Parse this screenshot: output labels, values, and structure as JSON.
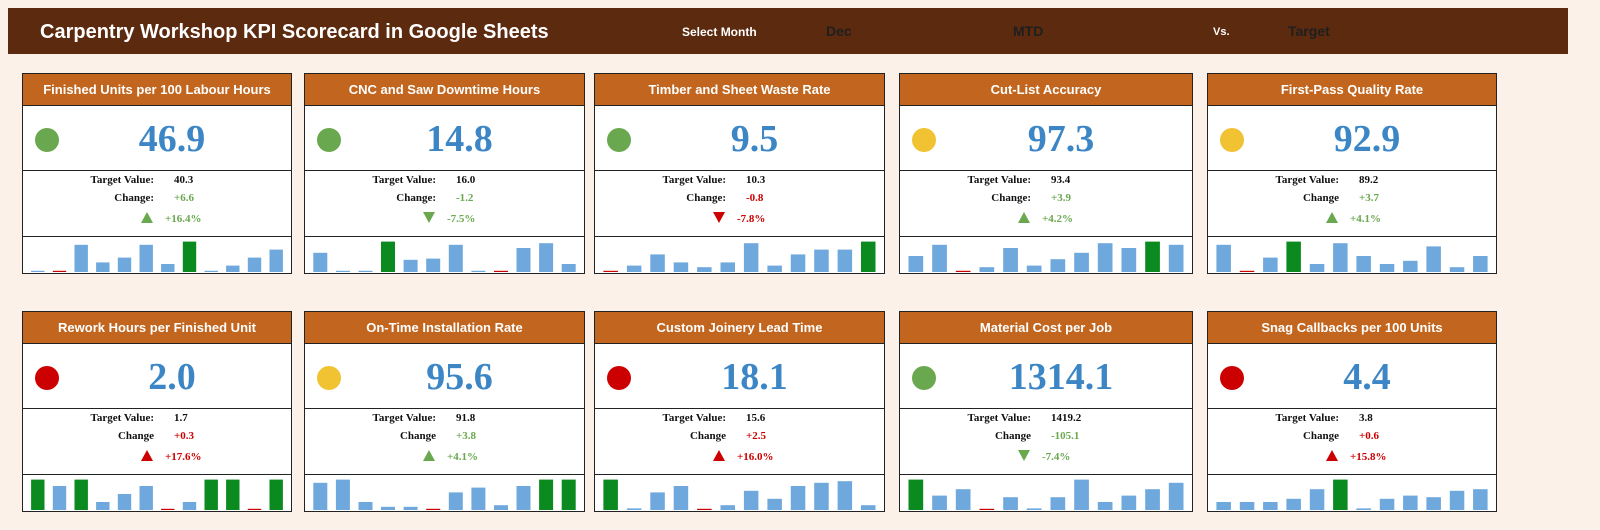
{
  "header": {
    "title": "Carpentry Workshop KPI Scorecard in Google Sheets",
    "select_month_label": "Select Month",
    "month": "Dec",
    "period": "MTD",
    "vs_label": "Vs.",
    "comparison": "Target"
  },
  "labels": {
    "target": "Target Value:"
  },
  "colors": {
    "header_bg": "#5c2a0e",
    "card_title_bg": "#c2661f",
    "value": "#3d86c6",
    "green": "#6aa84f",
    "amber": "#f1c232",
    "red": "#cc0000",
    "bar": "#6fa8dc",
    "bar_highlight": "#0b8a1f"
  },
  "cards": [
    {
      "title": "Finished Units per 100 Labour Hours",
      "value": "46.9",
      "status": "green",
      "target_value": "40.3",
      "change_label": "Change:",
      "change": "+6.6",
      "change_class": "pos",
      "direction": "up",
      "arrow_color": "green",
      "pct": "+16.4%",
      "bars": [
        0,
        0,
        0.85,
        0.3,
        0.45,
        0.85,
        0.25,
        0.95,
        0,
        0.2,
        0.45,
        0.7
      ],
      "bar_types": [
        "z",
        "r",
        "b",
        "b",
        "b",
        "b",
        "b",
        "g",
        "z",
        "b",
        "b",
        "b"
      ]
    },
    {
      "title": "CNC and Saw Downtime Hours",
      "value": "14.8",
      "status": "green",
      "target_value": "16.0",
      "change_label": "Change:",
      "change": "-1.2",
      "change_class": "pos",
      "direction": "down",
      "arrow_color": "green",
      "pct": "-7.5%",
      "bars": [
        0.6,
        0,
        0,
        0.95,
        0.38,
        0.42,
        0.85,
        0,
        0,
        0.75,
        0.9,
        0.25
      ],
      "bar_types": [
        "b",
        "z",
        "z",
        "g",
        "b",
        "b",
        "b",
        "z",
        "r",
        "b",
        "b",
        "b"
      ]
    },
    {
      "title": "Timber and Sheet Waste Rate",
      "value": "9.5",
      "status": "green",
      "target_value": "10.3",
      "change_label": "Change:",
      "change": "-0.8",
      "change_class": "neg",
      "direction": "down",
      "arrow_color": "red",
      "pct": "-7.8%",
      "bars": [
        0,
        0.2,
        0.55,
        0.3,
        0.15,
        0.3,
        0.9,
        0.2,
        0.55,
        0.7,
        0.7,
        0.95
      ],
      "bar_types": [
        "r",
        "b",
        "b",
        "b",
        "b",
        "b",
        "b",
        "b",
        "b",
        "b",
        "b",
        "g"
      ]
    },
    {
      "title": "Cut-List Accuracy",
      "value": "97.3",
      "status": "amber",
      "target_value": "93.4",
      "change_label": "Change:",
      "change": "+3.9",
      "change_class": "pos",
      "direction": "up",
      "arrow_color": "green",
      "pct": "+4.2%",
      "bars": [
        0.5,
        0.85,
        0,
        0.15,
        0.75,
        0.2,
        0.4,
        0.6,
        0.9,
        0.75,
        0.95,
        0.85
      ],
      "bar_types": [
        "b",
        "b",
        "r",
        "b",
        "b",
        "b",
        "b",
        "b",
        "b",
        "b",
        "g",
        "b"
      ]
    },
    {
      "title": "First-Pass Quality Rate",
      "value": "92.9",
      "status": "amber",
      "target_value": "89.2",
      "change_label": "Change",
      "change": "+3.7",
      "change_class": "pos",
      "direction": "up",
      "arrow_color": "green",
      "pct": "+4.1%",
      "bars": [
        0.85,
        0,
        0.45,
        0.95,
        0.25,
        0.9,
        0.5,
        0.25,
        0.35,
        0.8,
        0.15,
        0.5
      ],
      "bar_types": [
        "b",
        "r",
        "b",
        "g",
        "b",
        "b",
        "b",
        "b",
        "b",
        "b",
        "b",
        "b"
      ]
    },
    {
      "title": "Rework Hours per Finished Unit",
      "value": "2.0",
      "status": "red",
      "target_value": "1.7",
      "change_label": "Change",
      "change": "+0.3",
      "change_class": "neg",
      "direction": "up",
      "arrow_color": "red",
      "pct": "+17.6%",
      "bars": [
        0.95,
        0.75,
        0.95,
        0.25,
        0.5,
        0.75,
        0,
        0.25,
        0.95,
        0.95,
        0,
        0.95
      ],
      "bar_types": [
        "g",
        "b",
        "g",
        "b",
        "b",
        "b",
        "r",
        "b",
        "g",
        "g",
        "r",
        "g"
      ]
    },
    {
      "title": "On-Time Installation Rate",
      "value": "95.6",
      "status": "amber",
      "target_value": "91.8",
      "change_label": "Change",
      "change": "+3.8",
      "change_class": "pos",
      "direction": "up",
      "arrow_color": "green",
      "pct": "+4.1%",
      "bars": [
        0.85,
        0.95,
        0.25,
        0.1,
        0.1,
        0,
        0.55,
        0.7,
        0.15,
        0.75,
        0.95,
        0.95
      ],
      "bar_types": [
        "b",
        "b",
        "b",
        "b",
        "b",
        "r",
        "b",
        "b",
        "b",
        "b",
        "g",
        "g"
      ]
    },
    {
      "title": "Custom Joinery Lead Time",
      "value": "18.1",
      "status": "red",
      "target_value": "15.6",
      "change_label": "Change",
      "change": "+2.5",
      "change_class": "neg",
      "direction": "up",
      "arrow_color": "red",
      "pct": "+16.0%",
      "bars": [
        0.95,
        0.05,
        0.55,
        0.75,
        0,
        0.15,
        0.6,
        0.35,
        0.75,
        0.85,
        0.9,
        0.15
      ],
      "bar_types": [
        "g",
        "b",
        "b",
        "b",
        "r",
        "b",
        "b",
        "b",
        "b",
        "b",
        "b",
        "b"
      ]
    },
    {
      "title": "Material Cost per Job",
      "value": "1314.1",
      "status": "green",
      "target_value": "1419.2",
      "change_label": "Change",
      "change": "-105.1",
      "change_class": "pos",
      "direction": "down",
      "arrow_color": "green",
      "pct": "-7.4%",
      "bars": [
        0.95,
        0.45,
        0.65,
        0,
        0.4,
        0.05,
        0.4,
        0.95,
        0.25,
        0.45,
        0.65,
        0.85
      ],
      "bar_types": [
        "g",
        "b",
        "b",
        "r",
        "b",
        "b",
        "b",
        "b",
        "b",
        "b",
        "b",
        "b"
      ]
    },
    {
      "title": "Snag Callbacks per 100 Units",
      "value": "4.4",
      "status": "red",
      "target_value": "3.8",
      "change_label": "Change",
      "change": "+0.6",
      "change_class": "neg",
      "direction": "up",
      "arrow_color": "red",
      "pct": "+15.8%",
      "bars": [
        0.25,
        0.25,
        0.25,
        0.35,
        0.65,
        0.95,
        0.05,
        0.35,
        0.45,
        0.4,
        0.6,
        0.65
      ],
      "bar_types": [
        "b",
        "b",
        "b",
        "b",
        "b",
        "g",
        "b",
        "b",
        "b",
        "b",
        "b",
        "b"
      ]
    }
  ]
}
